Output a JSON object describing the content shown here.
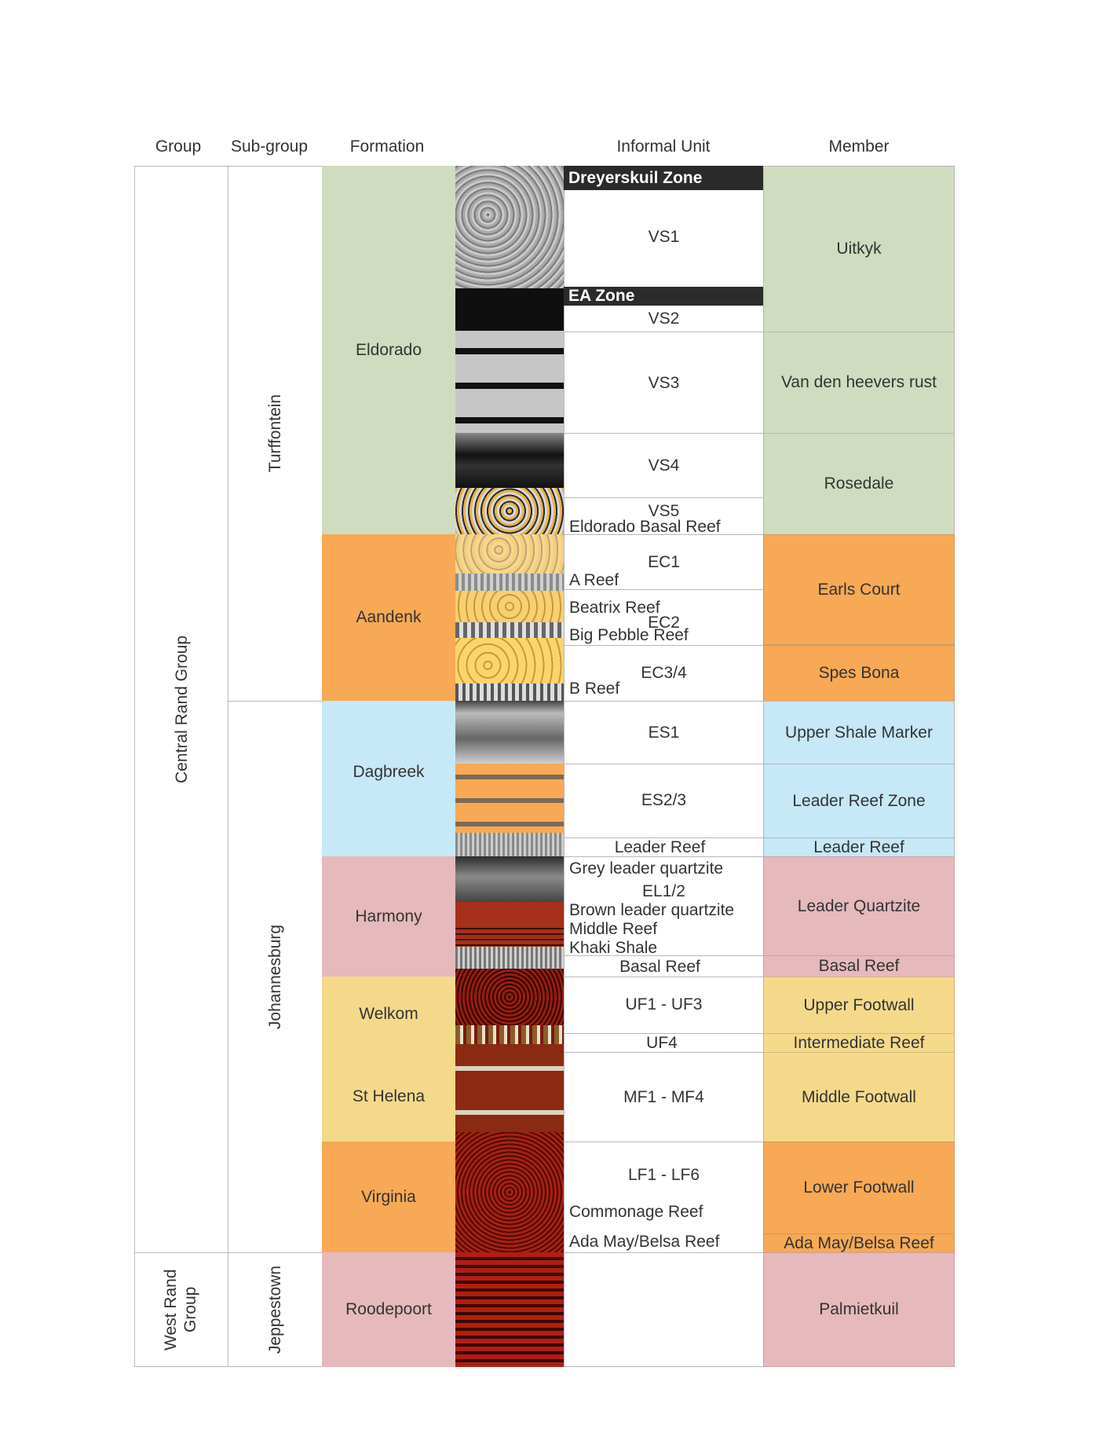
{
  "headers": {
    "group": "Group",
    "subgroup": "Sub-group",
    "formation": "Formation",
    "informal_unit": "Informal Unit",
    "member": "Member"
  },
  "groups": {
    "central_rand": "Central Rand Group",
    "west_rand": "West Rand Group"
  },
  "subgroups": {
    "turffontein": "Turffontein",
    "johannesburg": "Johannesburg",
    "jeppestown": "Jeppestown"
  },
  "formations": {
    "eldorado": "Eldorado",
    "aandenk": "Aandenk",
    "dagbreek": "Dagbreek",
    "harmony": "Harmony",
    "welkom": "Welkom",
    "st_helena": "St Helena",
    "virginia": "Virginia",
    "roodepoort": "Roodepoort"
  },
  "zones": {
    "dreyerskuil": "Dreyerskuil Zone",
    "ea": "EA Zone"
  },
  "units": {
    "vs1": "VS1",
    "vs2": "VS2",
    "vs3": "VS3",
    "vs4": "VS4",
    "vs5": "VS5",
    "ec1": "EC1",
    "ec2": "EC2",
    "ec34": "EC3/4",
    "es1": "ES1",
    "es23": "ES2/3",
    "leader_reef": "Leader Reef",
    "el12": "EL1/2",
    "basal_reef": "Basal Reef",
    "uf13": "UF1 - UF3",
    "uf4": "UF4",
    "mf14": "MF1 - MF4",
    "lf16": "LF1 - LF6"
  },
  "reefs": {
    "eldorado_basal": "Eldorado Basal Reef",
    "a_reef": "A Reef",
    "beatrix": "Beatrix Reef",
    "big_pebble": "Big Pebble Reef",
    "b_reef": "B Reef",
    "grey_leader": "Grey leader quartzite",
    "brown_leader": "Brown leader quartzite",
    "middle_reef": "Middle Reef",
    "khaki_shale": "Khaki Shale",
    "commonage": "Commonage Reef",
    "ada_may": "Ada May/Belsa Reef"
  },
  "members": {
    "uitkyk": "Uitkyk",
    "van_den_heevers_rust": "Van den heevers rust",
    "rosedale": "Rosedale",
    "earls_court": "Earls Court",
    "spes_bona": "Spes Bona",
    "upper_shale_marker": "Upper Shale Marker",
    "leader_reef_zone": "Leader Reef Zone",
    "leader_reef": "Leader Reef",
    "leader_quartzite": "Leader Quartzite",
    "basal_reef": "Basal Reef",
    "upper_footwall": "Upper Footwall",
    "intermediate_reef": "Intermediate Reef",
    "middle_footwall": "Middle Footwall",
    "lower_footwall": "Lower Footwall",
    "ada_may": "Ada May/Belsa Reef",
    "palmietkuil": "Palmietkuil"
  },
  "colors": {
    "green": "#cfdcbf",
    "orange": "#f7a955",
    "blue": "#c6e8f7",
    "pink": "#e6b9bc",
    "yellow": "#f5d98b",
    "zone": "#2b2b2b",
    "grid": "#b9b9b9"
  }
}
